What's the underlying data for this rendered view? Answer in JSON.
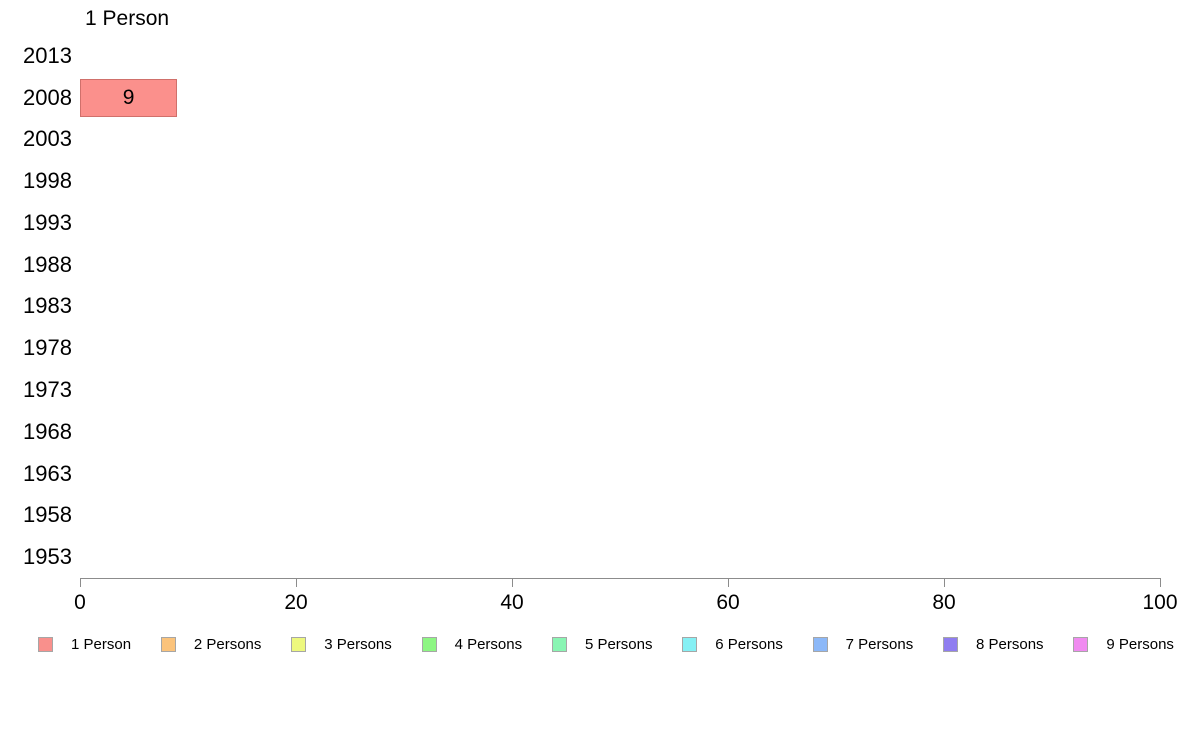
{
  "chart_data": {
    "type": "bar",
    "orientation": "horizontal",
    "title": "1 Person",
    "categories": [
      "2013",
      "2008",
      "2003",
      "1998",
      "1993",
      "1988",
      "1983",
      "1978",
      "1973",
      "1968",
      "1963",
      "1958",
      "1953"
    ],
    "series": [
      {
        "name": "1 Person",
        "fill_color": "#FB908C",
        "border_color": "#D0706B",
        "values": [
          null,
          9,
          null,
          null,
          null,
          null,
          null,
          null,
          null,
          null,
          null,
          null,
          null
        ]
      }
    ],
    "bar_labels": [
      null,
      "9",
      null,
      null,
      null,
      null,
      null,
      null,
      null,
      null,
      null,
      null,
      null
    ],
    "xlim": [
      0,
      100
    ],
    "x_ticks": [
      0,
      20,
      40,
      60,
      80,
      100
    ],
    "x_tick_labels": [
      "0",
      "20",
      "40",
      "60",
      "80",
      "100"
    ],
    "grid": "off",
    "axis_color": "#8c8c8c",
    "legend_position": "bottom",
    "legend": [
      {
        "label": "1 Person",
        "color": "#F9908C"
      },
      {
        "label": "2 Persons",
        "color": "#FBC37B"
      },
      {
        "label": "3 Persons",
        "color": "#EDF87E"
      },
      {
        "label": "4 Persons",
        "color": "#8DF683"
      },
      {
        "label": "5 Persons",
        "color": "#89F5B3"
      },
      {
        "label": "6 Persons",
        "color": "#85F0F4"
      },
      {
        "label": "7 Persons",
        "color": "#8CB8F8"
      },
      {
        "label": "8 Persons",
        "color": "#8F7DF0"
      },
      {
        "label": "9 Persons",
        "color": "#F08BF0"
      }
    ]
  }
}
